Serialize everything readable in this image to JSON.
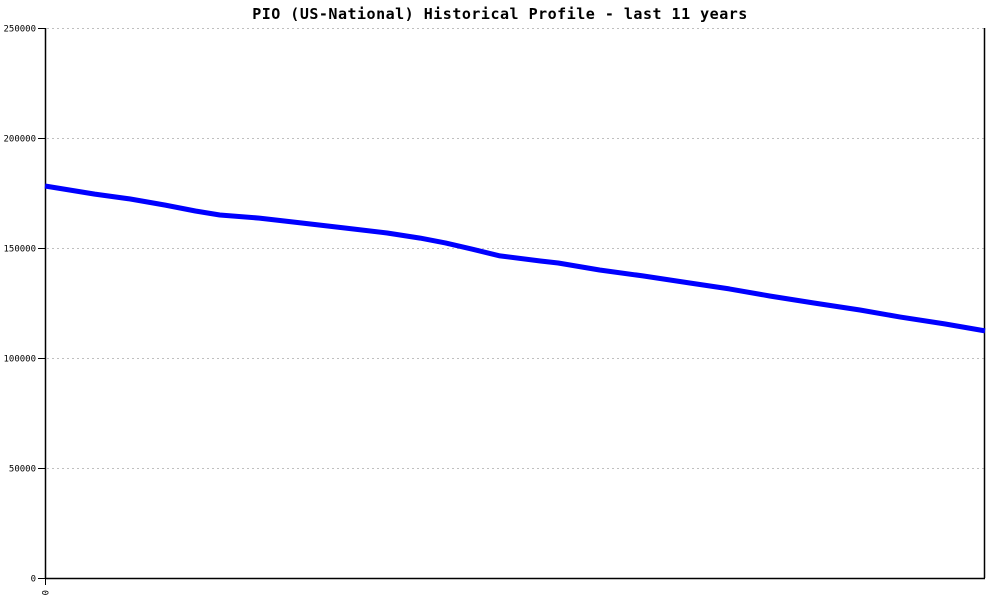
{
  "title": "PIO (US-National) Historical Profile - last 11 years",
  "colors": {
    "line": "#0000ff",
    "grid": "#bfbfbf",
    "axis": "#000000",
    "text": "#000000",
    "background": "#ffffff"
  },
  "chart_data": {
    "type": "line",
    "title": "PIO (US-National) Historical Profile - last 11 years",
    "xlabel": "",
    "ylabel": "",
    "x_span_years": 11,
    "ylim": [
      0,
      250000
    ],
    "y_ticks": [
      0,
      50000,
      100000,
      150000,
      200000,
      250000
    ],
    "y_tick_labels": [
      "0",
      "50000",
      "100000",
      "150000",
      "200000",
      "250000"
    ],
    "x_tick_labels": [
      "0"
    ],
    "grid": "horizontal-dashed",
    "legend": "none",
    "series": [
      {
        "name": "PIO (US-National)",
        "color": "#0000ff",
        "points": [
          [
            0.0,
            178200
          ],
          [
            0.053,
            174500
          ],
          [
            0.09,
            172300
          ],
          [
            0.128,
            169500
          ],
          [
            0.16,
            166800
          ],
          [
            0.186,
            165000
          ],
          [
            0.228,
            163600
          ],
          [
            0.272,
            161400
          ],
          [
            0.319,
            159100
          ],
          [
            0.364,
            156800
          ],
          [
            0.399,
            154500
          ],
          [
            0.426,
            152300
          ],
          [
            0.454,
            149500
          ],
          [
            0.484,
            146400
          ],
          [
            0.527,
            144100
          ],
          [
            0.546,
            143200
          ],
          [
            0.59,
            140000
          ],
          [
            0.636,
            137300
          ],
          [
            0.686,
            134100
          ],
          [
            0.728,
            131400
          ],
          [
            0.771,
            128200
          ],
          [
            0.818,
            125000
          ],
          [
            0.867,
            121800
          ],
          [
            0.91,
            118600
          ],
          [
            0.957,
            115500
          ],
          [
            1.0,
            112300
          ]
        ]
      }
    ]
  }
}
